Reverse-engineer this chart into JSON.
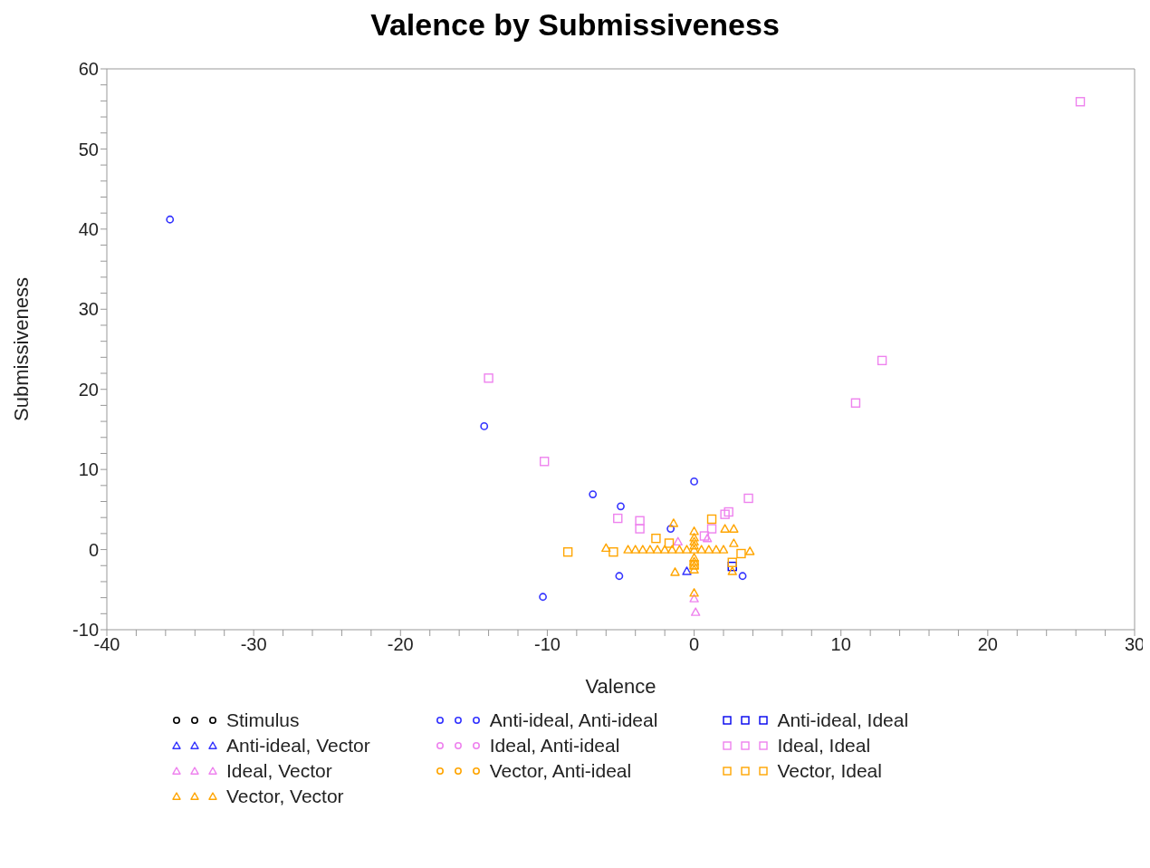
{
  "chart_data": {
    "type": "scatter",
    "title": "Valence by Submissiveness",
    "xlabel": "Valence",
    "ylabel": "Submissiveness",
    "xlim": [
      -40,
      30
    ],
    "ylim": [
      -10,
      60
    ],
    "xticks": [
      -40,
      {
        "value": -38,
        "label": null
      },
      {
        "value": -36,
        "label": null
      },
      {
        "value": -34,
        "label": null
      },
      {
        "value": -32,
        "label": null
      },
      -30,
      {
        "value": -28,
        "label": null
      },
      {
        "value": -26,
        "label": null
      },
      {
        "value": -24,
        "label": null
      },
      {
        "value": -22,
        "label": null
      },
      -20,
      {
        "value": -18,
        "label": null
      },
      {
        "value": -16,
        "label": null
      },
      {
        "value": -14,
        "label": null
      },
      {
        "value": -12,
        "label": null
      },
      -10,
      {
        "value": -8,
        "label": null
      },
      {
        "value": -6,
        "label": null
      },
      {
        "value": -4,
        "label": null
      },
      {
        "value": -2,
        "label": null
      },
      0,
      {
        "value": 2,
        "label": null
      },
      {
        "value": 4,
        "label": null
      },
      {
        "value": 6,
        "label": null
      },
      {
        "value": 8,
        "label": null
      },
      10,
      {
        "value": 12,
        "label": null
      },
      {
        "value": 14,
        "label": null
      },
      {
        "value": 16,
        "label": null
      },
      {
        "value": 18,
        "label": null
      },
      20,
      {
        "value": 22,
        "label": null
      },
      {
        "value": 24,
        "label": null
      },
      {
        "value": 26,
        "label": null
      },
      {
        "value": 28,
        "label": null
      },
      30
    ],
    "yticks": [
      -10,
      {
        "value": -8,
        "label": null
      },
      {
        "value": -6,
        "label": null
      },
      {
        "value": -4,
        "label": null
      },
      {
        "value": -2,
        "label": null
      },
      0,
      {
        "value": 2,
        "label": null
      },
      {
        "value": 4,
        "label": null
      },
      {
        "value": 6,
        "label": null
      },
      {
        "value": 8,
        "label": null
      },
      10,
      {
        "value": 12,
        "label": null
      },
      {
        "value": 14,
        "label": null
      },
      {
        "value": 16,
        "label": null
      },
      {
        "value": 18,
        "label": null
      },
      20,
      {
        "value": 22,
        "label": null
      },
      {
        "value": 24,
        "label": null
      },
      {
        "value": 26,
        "label": null
      },
      {
        "value": 28,
        "label": null
      },
      30,
      {
        "value": 32,
        "label": null
      },
      {
        "value": 34,
        "label": null
      },
      {
        "value": 36,
        "label": null
      },
      {
        "value": 38,
        "label": null
      },
      40,
      {
        "value": 42,
        "label": null
      },
      {
        "value": 44,
        "label": null
      },
      {
        "value": 46,
        "label": null
      },
      {
        "value": 48,
        "label": null
      },
      50,
      {
        "value": 52,
        "label": null
      },
      {
        "value": 54,
        "label": null
      },
      {
        "value": 56,
        "label": null
      },
      {
        "value": 58,
        "label": null
      },
      60
    ],
    "grid": false,
    "legend": "bottom",
    "series": [
      {
        "name": "Stimulus",
        "color": "#000000",
        "marker": "circle"
      },
      {
        "name": "Anti-ideal, Anti-ideal",
        "color": "#3333ff",
        "marker": "circle",
        "x": [
          -35.7,
          -14.3,
          -6.9,
          -5.0,
          0,
          -1.6,
          -5.1,
          -10.3,
          3.3
        ],
        "values": [
          41.2,
          15.4,
          6.9,
          5.4,
          8.5,
          2.6,
          -3.3,
          -5.9,
          -3.3
        ]
      },
      {
        "name": "Anti-ideal, Ideal",
        "color": "#0000ee",
        "marker": "square",
        "x": [
          2.6
        ],
        "values": [
          -2.1
        ]
      },
      {
        "name": "Anti-ideal, Vector",
        "color": "#3333ff",
        "marker": "triangle",
        "x": [
          -0.5
        ],
        "values": [
          -2.7
        ]
      },
      {
        "name": "Ideal, Anti-ideal",
        "color": "#ee82ee",
        "marker": "circle"
      },
      {
        "name": "Ideal, Ideal",
        "color": "#ee82ee",
        "marker": "square",
        "x": [
          26.3,
          12.8,
          11.0,
          -14.0,
          -10.2,
          3.7,
          2.35,
          2.1,
          -5.2,
          -3.7,
          -3.7,
          1.2,
          0.7
        ],
        "values": [
          55.9,
          23.6,
          18.3,
          21.4,
          11.0,
          6.4,
          4.7,
          4.4,
          3.9,
          3.6,
          2.6,
          2.6,
          1.7
        ]
      },
      {
        "name": "Ideal, Vector",
        "color": "#ee82ee",
        "marker": "triangle",
        "x": [
          0,
          0.1,
          -1.1,
          0.9
        ],
        "values": [
          -6.1,
          -7.8,
          1.0,
          1.4
        ]
      },
      {
        "name": "Vector, Anti-ideal",
        "color": "#ffa500",
        "marker": "circle"
      },
      {
        "name": "Vector, Ideal",
        "color": "#ffa500",
        "marker": "square",
        "x": [
          -8.6,
          -5.5,
          1.2,
          -2.6,
          3.2,
          2.6,
          0,
          -1.7
        ],
        "values": [
          -0.3,
          -0.3,
          3.8,
          1.4,
          -0.5,
          -1.6,
          -1.9,
          0.8
        ]
      },
      {
        "name": "Vector, Vector",
        "color": "#ffa500",
        "marker": "triangle",
        "x": [
          -6.0,
          -1.4,
          0,
          2.1,
          2.7,
          2.7,
          3.8,
          -1.3,
          2.6,
          0,
          -4.5,
          -4,
          -3.5,
          -3,
          -2.5,
          -2,
          -1.5,
          -1,
          -0.5,
          0.5,
          1,
          1.5,
          2,
          0,
          0,
          0,
          0,
          0,
          0,
          0,
          0
        ],
        "values": [
          0.2,
          3.3,
          2.3,
          2.6,
          2.6,
          0.8,
          -0.2,
          -2.8,
          -2.7,
          -5.4,
          0,
          0,
          0,
          0,
          0,
          0,
          0,
          0,
          0,
          0,
          0,
          0,
          0,
          -2.5,
          -2,
          -1.5,
          -1,
          0,
          0.5,
          1,
          1.5
        ]
      }
    ]
  }
}
